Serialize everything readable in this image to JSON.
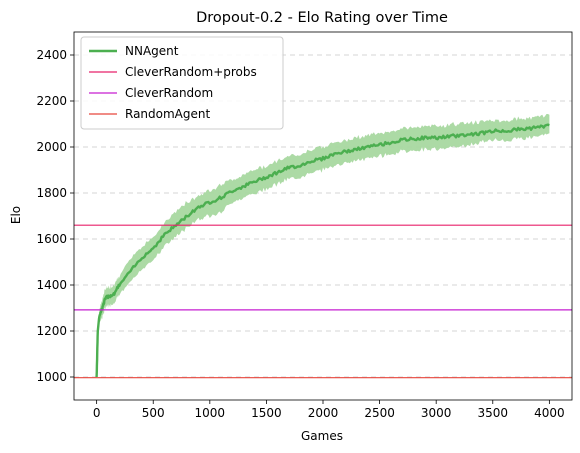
{
  "chart_data": {
    "type": "line",
    "title": "Dropout-0.2 - Elo Rating over Time",
    "xlabel": "Games",
    "ylabel": "Elo",
    "xlim": [
      -200,
      4200
    ],
    "ylim": [
      900,
      2500
    ],
    "xticks": [
      0,
      500,
      1000,
      1500,
      2000,
      2500,
      3000,
      3500,
      4000
    ],
    "yticks": [
      1000,
      1200,
      1400,
      1600,
      1800,
      2000,
      2200,
      2400
    ],
    "grid": "y-dashed",
    "legend_position": "top-left",
    "series": [
      {
        "name": "NNAgent",
        "kind": "line-with-band",
        "color": "#4caf50",
        "band_color": "#a8d8a0",
        "x": [
          0,
          10,
          25,
          50,
          75,
          100,
          150,
          200,
          300,
          400,
          500,
          600,
          700,
          800,
          900,
          1000,
          1100,
          1200,
          1300,
          1400,
          1500,
          1600,
          1700,
          1800,
          1900,
          2000,
          2100,
          2200,
          2300,
          2400,
          2500,
          2600,
          2700,
          2800,
          2900,
          3000,
          3100,
          3200,
          3300,
          3400,
          3500,
          3600,
          3700,
          3800,
          3900,
          4000
        ],
        "y": [
          1000,
          1200,
          1270,
          1300,
          1340,
          1350,
          1360,
          1400,
          1460,
          1520,
          1560,
          1620,
          1660,
          1700,
          1740,
          1760,
          1780,
          1810,
          1830,
          1850,
          1870,
          1890,
          1910,
          1920,
          1940,
          1950,
          1970,
          1980,
          1990,
          2000,
          2010,
          2020,
          2030,
          2035,
          2040,
          2040,
          2045,
          2050,
          2055,
          2060,
          2070,
          2070,
          2075,
          2080,
          2085,
          2095
        ],
        "lower": [
          1000,
          1180,
          1240,
          1260,
          1300,
          1310,
          1320,
          1360,
          1410,
          1470,
          1510,
          1570,
          1610,
          1650,
          1690,
          1700,
          1720,
          1760,
          1780,
          1800,
          1820,
          1840,
          1860,
          1870,
          1890,
          1900,
          1920,
          1930,
          1940,
          1950,
          1960,
          1970,
          1980,
          1985,
          1990,
          1990,
          1995,
          2000,
          2010,
          2020,
          2030,
          2030,
          2035,
          2040,
          2045,
          2060
        ],
        "upper": [
          1000,
          1220,
          1300,
          1340,
          1380,
          1390,
          1400,
          1440,
          1510,
          1570,
          1610,
          1670,
          1720,
          1760,
          1790,
          1810,
          1840,
          1860,
          1880,
          1900,
          1920,
          1940,
          1960,
          1970,
          1990,
          2000,
          2020,
          2030,
          2040,
          2050,
          2060,
          2070,
          2080,
          2085,
          2090,
          2090,
          2095,
          2100,
          2105,
          2110,
          2115,
          2115,
          2120,
          2125,
          2130,
          2140
        ]
      },
      {
        "name": "CleverRandom+probs",
        "kind": "hline",
        "color": "#e8206a",
        "y": 1660
      },
      {
        "name": "CleverRandom",
        "kind": "hline",
        "color": "#c61fd1",
        "y": 1292
      },
      {
        "name": "RandomAgent",
        "kind": "hline",
        "color": "#e8463c",
        "y": 997
      }
    ]
  }
}
